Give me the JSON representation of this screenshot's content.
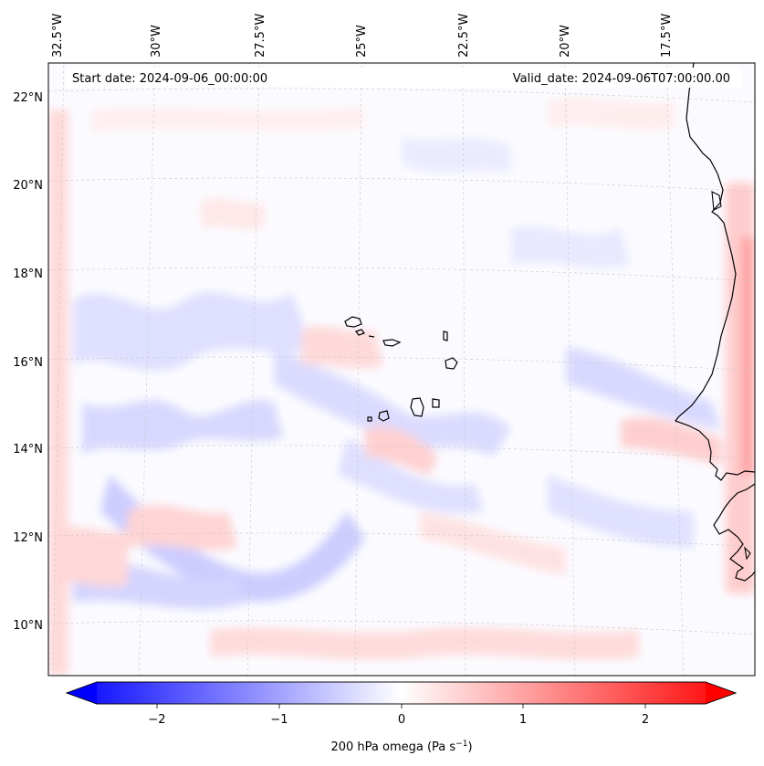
{
  "map": {
    "start_date_label": "Start date: 2024-09-06_00:00:00",
    "valid_date_label": "Valid_date: 2024-09-06T07:00:00.00",
    "lon_labels": [
      "32.5°W",
      "30°W",
      "27.5°W",
      "25°W",
      "22.5°W",
      "20°W",
      "17.5°W"
    ],
    "lat_labels": [
      "22°N",
      "20°N",
      "18°N",
      "16°N",
      "14°N",
      "12°N",
      "10°N"
    ],
    "field": "200 hPa omega",
    "colormap": "bwr",
    "gridlines": true
  },
  "colorbar": {
    "label_main": "200 hPa omega (Pa s",
    "label_exp": "−1",
    "label_close": ")",
    "ticks": [
      "−2",
      "−1",
      "0",
      "1",
      "2"
    ],
    "vmin": -2.5,
    "vmax": 2.5,
    "extend": "both"
  }
}
